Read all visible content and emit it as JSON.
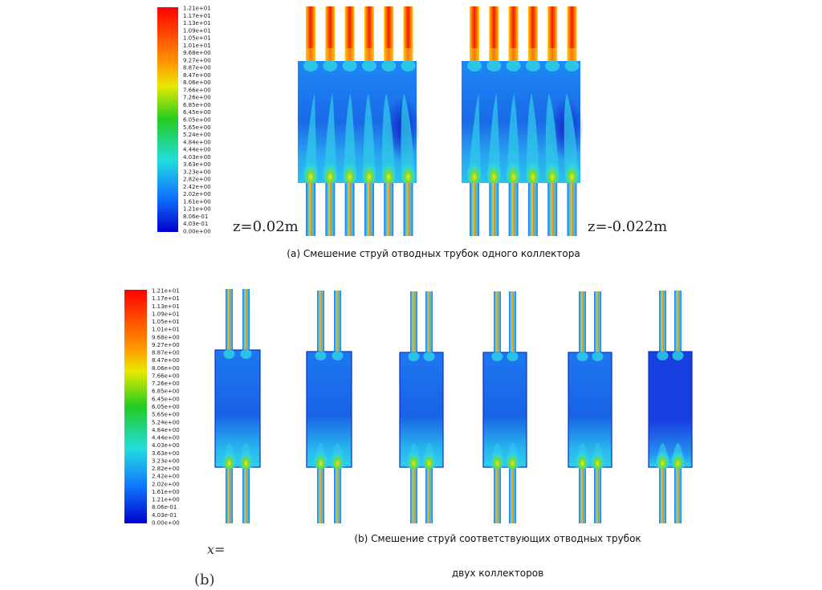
{
  "colorbar_ticks": [
    "1.21e+01",
    "1.17e+01",
    "1.13e+01",
    "1.09e+01",
    "1.05e+01",
    "1.01e+01",
    "9.68e+00",
    "9.27e+00",
    "8.87e+00",
    "8.47e+00",
    "8.06e+00",
    "7.66e+00",
    "7.26e+00",
    "6.85e+00",
    "6.45e+00",
    "6.05e+00",
    "5.65e+00",
    "5.24e+00",
    "4.84e+00",
    "4.44e+00",
    "4.03e+00",
    "3.63e+00",
    "3.23e+00",
    "2.82e+00",
    "2.42e+00",
    "2.02e+00",
    "1.61e+00",
    "1.21e+00",
    "8.06e-01",
    "4.03e-01",
    "0.00e+00"
  ],
  "panel_a": {
    "left_label": "z=0.02m",
    "right_label": "z=-0.022m",
    "caption": "(a) Смешение струй отводных трубок одного коллектора"
  },
  "panel_b": {
    "caption_line1": "(b) Смешение струй соответствующих отводных трубок",
    "caption_line2": "двух коллекторов",
    "stray_x": "x=",
    "stray_b": "(b)"
  },
  "colors": {
    "red": "#e8211b",
    "yellow": "#f4e21f",
    "green": "#3ccd3a",
    "cyan": "#2fd3e6",
    "blue": "#1a5cf0",
    "deep_blue": "#1530d8"
  }
}
